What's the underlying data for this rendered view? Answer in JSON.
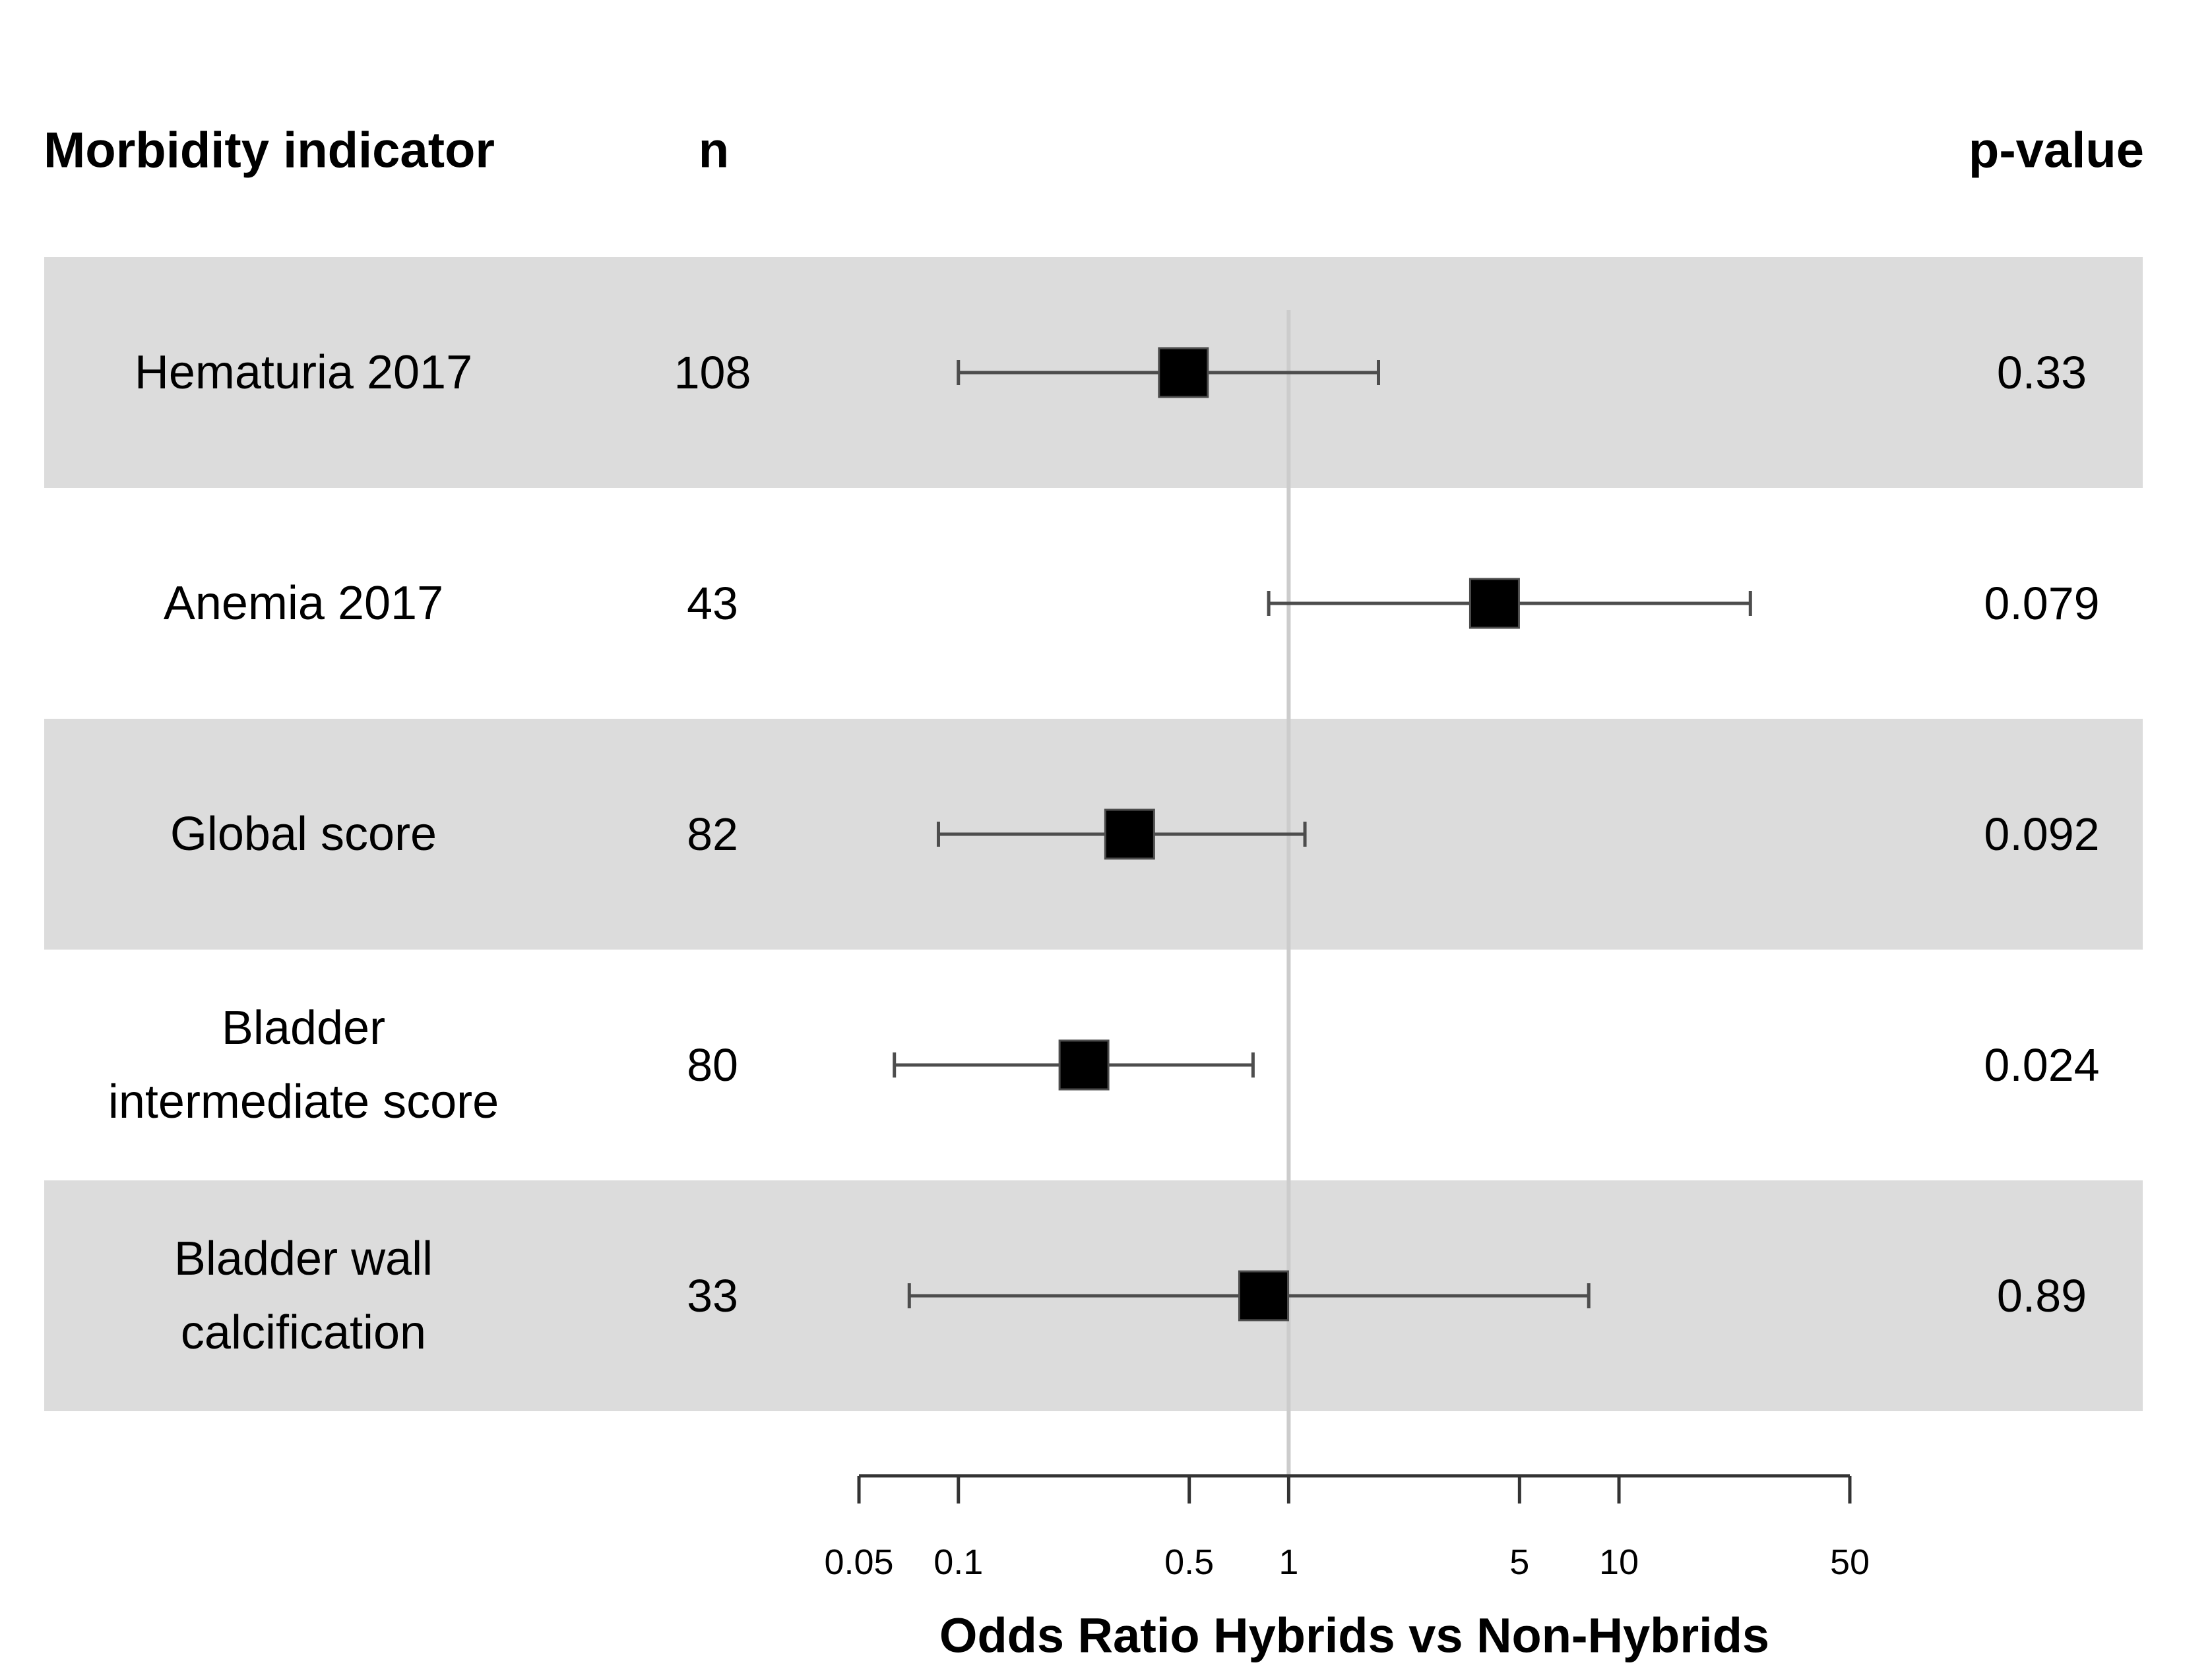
{
  "table": {
    "headers": [
      "Morbidity indicator",
      "n",
      "p-value"
    ],
    "rows": [
      {
        "label": "Hematuria 2017",
        "label_lines": [
          "Hematuria 2017"
        ],
        "n": "108",
        "p": "0.33"
      },
      {
        "label": "Anemia 2017",
        "label_lines": [
          "Anemia 2017"
        ],
        "n": "43",
        "p": "0.079"
      },
      {
        "label": "Global score",
        "label_lines": [
          "Global score"
        ],
        "n": "82",
        "p": "0.092"
      },
      {
        "label": "Bladder intermediate score",
        "label_lines": [
          "Bladder",
          "intermediate score"
        ],
        "n": "80",
        "p": "0.024"
      },
      {
        "label": "Bladder wall calcification",
        "label_lines": [
          "Bladder wall",
          "calcification"
        ],
        "n": "33",
        "p": "0.89"
      }
    ]
  },
  "chart_data": {
    "type": "scatter",
    "subtype": "forest-plot",
    "title": "",
    "xlabel": "Odds Ratio Hybrids vs Non-Hybrids",
    "ylabel": "",
    "x_scale": "log",
    "xlim": [
      0.05,
      50
    ],
    "x_ticks": [
      0.05,
      0.1,
      0.5,
      1,
      5,
      10,
      50
    ],
    "x_tick_labels": [
      "0.05",
      "0.1",
      "0.5",
      "1",
      "5",
      "10",
      "50"
    ],
    "reference_line": 1,
    "grid": false,
    "series": [
      {
        "name": "Hematuria 2017",
        "n": 108,
        "or": 0.48,
        "ci_low": 0.1,
        "ci_high": 1.87,
        "p_value": "0.33",
        "shaded_band": true
      },
      {
        "name": "Anemia 2017",
        "n": 43,
        "or": 4.2,
        "ci_low": 0.87,
        "ci_high": 25,
        "p_value": "0.079",
        "shaded_band": false
      },
      {
        "name": "Global score",
        "n": 82,
        "or": 0.33,
        "ci_low": 0.087,
        "ci_high": 1.12,
        "p_value": "0.092",
        "shaded_band": true
      },
      {
        "name": "Bladder intermediate score",
        "n": 80,
        "or": 0.24,
        "ci_low": 0.064,
        "ci_high": 0.78,
        "p_value": "0.024",
        "shaded_band": false
      },
      {
        "name": "Bladder wall calcification",
        "n": 33,
        "or": 0.84,
        "ci_low": 0.071,
        "ci_high": 8.1,
        "p_value": "0.89",
        "shaded_band": true
      }
    ],
    "colors": {
      "band": "#dcdcdc",
      "marker": "#000000",
      "ci_line": "#4d4d4d",
      "reference_line": "#cccccc",
      "axis": "#333333",
      "text": "#000000"
    }
  }
}
